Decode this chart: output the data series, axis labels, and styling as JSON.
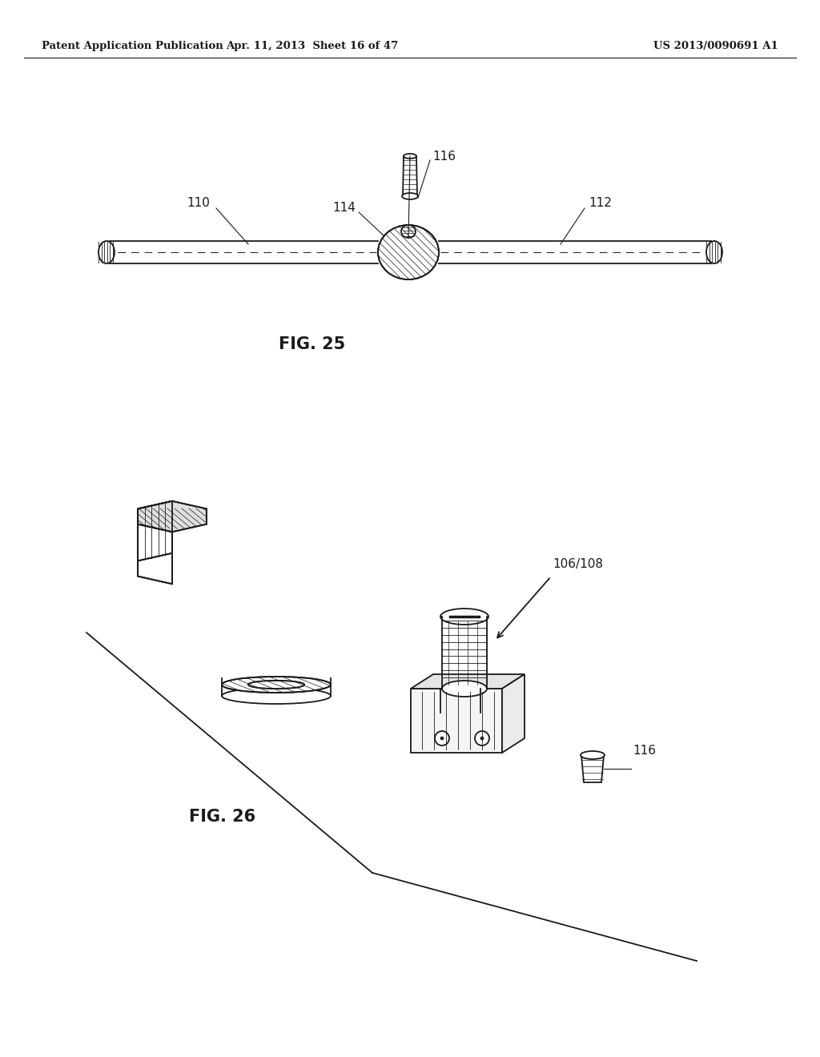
{
  "background_color": "#ffffff",
  "header_left": "Patent Application Publication",
  "header_center": "Apr. 11, 2013  Sheet 16 of 47",
  "header_right": "US 2013/0090691 A1",
  "fig25_caption": "FIG. 25",
  "fig26_caption": "FIG. 26",
  "label_110": "110",
  "label_112": "112",
  "label_114": "114",
  "label_116_top": "116",
  "label_116_bot": "116",
  "label_106_108": "106/108"
}
